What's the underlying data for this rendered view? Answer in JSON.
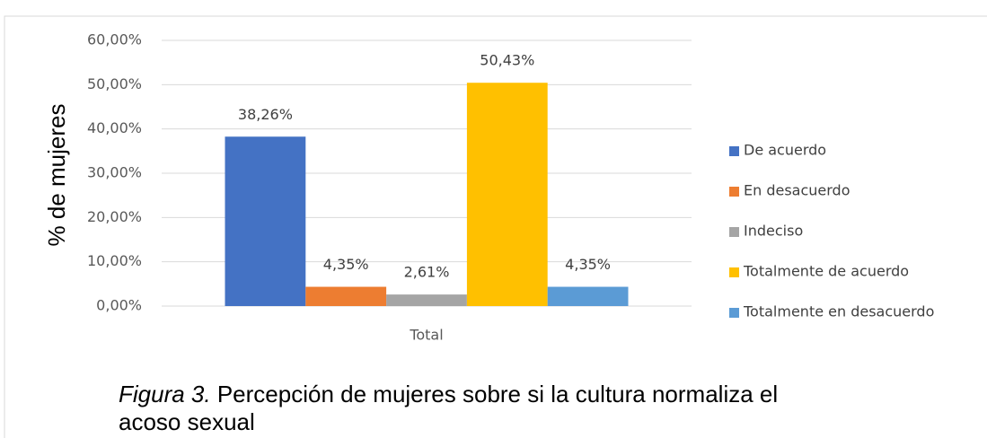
{
  "chart_data": {
    "type": "bar",
    "ylabel": "% de mujeres",
    "categories": [
      "Total"
    ],
    "series": [
      {
        "name": "De acuerdo",
        "color": "#4472c4",
        "values": [
          38.26
        ],
        "value_labels": [
          "38,26%"
        ]
      },
      {
        "name": "En desacuerdo",
        "color": "#ed7d31",
        "values": [
          4.35
        ],
        "value_labels": [
          "4,35%"
        ]
      },
      {
        "name": "Indeciso",
        "color": "#a5a5a5",
        "values": [
          2.61
        ],
        "value_labels": [
          "2,61%"
        ]
      },
      {
        "name": "Totalmente de acuerdo",
        "color": "#ffc000",
        "values": [
          50.43
        ],
        "value_labels": [
          "50,43%"
        ]
      },
      {
        "name": "Totalmente en desacuerdo",
        "color": "#5b9bd5",
        "values": [
          4.35
        ],
        "value_labels": [
          "4,35%"
        ]
      }
    ],
    "ylim": [
      0,
      60
    ],
    "yticks": [
      {
        "value": 0,
        "label": "0,00%"
      },
      {
        "value": 10,
        "label": "10,00%"
      },
      {
        "value": 20,
        "label": "20,00%"
      },
      {
        "value": 30,
        "label": "30,00%"
      },
      {
        "value": 40,
        "label": "40,00%"
      },
      {
        "value": 50,
        "label": "50,00%"
      },
      {
        "value": 60,
        "label": "60,00%"
      }
    ],
    "grid": true,
    "legend": "right",
    "caption_label": "Figura 3.",
    "caption": "Percepción de mujeres sobre si la cultura normaliza el acoso sexual"
  }
}
